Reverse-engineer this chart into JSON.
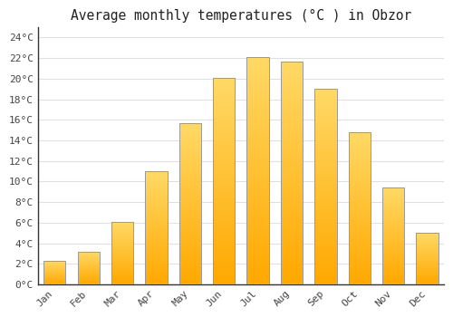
{
  "title": "Average monthly temperatures (°C ) in Obzor",
  "months": [
    "Jan",
    "Feb",
    "Mar",
    "Apr",
    "May",
    "Jun",
    "Jul",
    "Aug",
    "Sep",
    "Oct",
    "Nov",
    "Dec"
  ],
  "values": [
    2.3,
    3.2,
    6.1,
    11.0,
    15.7,
    20.1,
    22.1,
    21.7,
    19.0,
    14.8,
    9.4,
    5.0
  ],
  "ylim": [
    0,
    25
  ],
  "yticks": [
    0,
    2,
    4,
    6,
    8,
    10,
    12,
    14,
    16,
    18,
    20,
    22,
    24
  ],
  "ytick_labels": [
    "0°C",
    "2°C",
    "4°C",
    "6°C",
    "8°C",
    "10°C",
    "12°C",
    "14°C",
    "16°C",
    "18°C",
    "20°C",
    "22°C",
    "24°C"
  ],
  "background_color": "#ffffff",
  "grid_color": "#e0e0e0",
  "title_fontsize": 10.5,
  "tick_fontsize": 8,
  "bar_width": 0.65,
  "bar_color_bottom": "#F5A800",
  "bar_color_top": "#FFD966",
  "bar_edge_color": "#999999",
  "spine_color": "#333333"
}
